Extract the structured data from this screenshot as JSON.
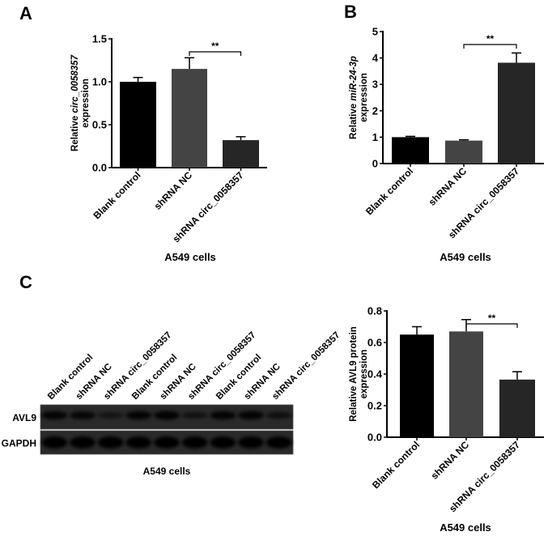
{
  "panels": {
    "a": "A",
    "b": "B",
    "c": "C"
  },
  "chart_data": [
    {
      "type": "bar",
      "panel": "A",
      "categories": [
        "Blank control",
        "shRNA NC",
        "shRNA circ_0058357"
      ],
      "values": [
        1.0,
        1.15,
        0.32
      ],
      "errors": [
        0.05,
        0.13,
        0.04
      ],
      "colors": [
        "#000000",
        "#444444",
        "#262626"
      ],
      "ylabel_line1_prefix": "Relative ",
      "ylabel_line1_italic": "circ_0058357",
      "ylabel_line2": "expression",
      "xlabel": "A549 cells",
      "ylim": [
        0,
        1.5
      ],
      "yticks": [
        "0.0",
        "0.5",
        "1.0",
        "1.5"
      ],
      "significance": {
        "from": 1,
        "to": 2,
        "label": "**"
      }
    },
    {
      "type": "bar",
      "panel": "B",
      "categories": [
        "Blank control",
        "shRNA NC",
        "shRNA circ_0058357"
      ],
      "values": [
        1.0,
        0.87,
        3.82
      ],
      "errors": [
        0.03,
        0.03,
        0.37
      ],
      "colors": [
        "#000000",
        "#444444",
        "#262626"
      ],
      "ylabel_line1_prefix": "Relative ",
      "ylabel_line1_italic": "miR-24-3p",
      "ylabel_line2": "expression",
      "xlabel": "A549 cells",
      "ylim": [
        0,
        5
      ],
      "yticks": [
        "0",
        "1",
        "2",
        "3",
        "4",
        "5"
      ],
      "significance": {
        "from": 1,
        "to": 2,
        "label": "**"
      }
    },
    {
      "type": "bar",
      "panel": "C",
      "categories": [
        "Blank control",
        "shRNA NC",
        "shRNA circ_0058357"
      ],
      "values": [
        0.65,
        0.67,
        0.365
      ],
      "errors": [
        0.05,
        0.075,
        0.05
      ],
      "colors": [
        "#000000",
        "#444444",
        "#262626"
      ],
      "ylabel_line1_prefix": "Relative AVL9 protein",
      "ylabel_line1_italic": "",
      "ylabel_line2": "expression",
      "xlabel": "A549 cells",
      "ylim": [
        0,
        0.8
      ],
      "yticks": [
        "0.0",
        "0.2",
        "0.4",
        "0.6",
        "0.8"
      ],
      "significance": {
        "from": 1,
        "to": 2,
        "label": "**"
      }
    }
  ],
  "blot": {
    "lanes": [
      "Blank control",
      "shRNA NC",
      "shRNA circ_0058357",
      "Blank control",
      "shRNA NC",
      "shRNA circ_0058357",
      "Blank control",
      "shRNA NC",
      "shRNA circ_0058357"
    ],
    "rows": [
      "AVL9",
      "GAPDH"
    ],
    "xlabel": "A549 cells"
  }
}
